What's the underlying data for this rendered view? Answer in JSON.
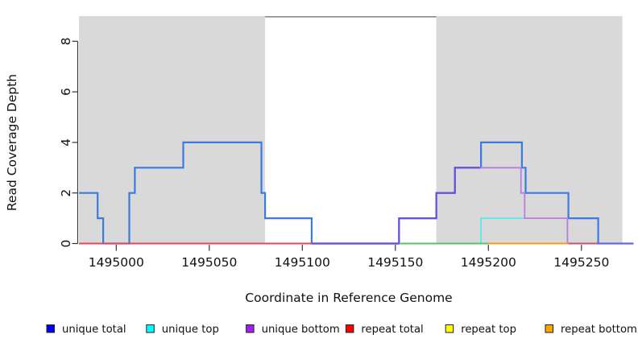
{
  "chart_data": {
    "type": "line",
    "title": "",
    "xlabel": "Coordinate in Reference Genome",
    "ylabel": "Read Coverage Depth",
    "xlim": [
      1494980,
      1495278
    ],
    "ylim": [
      0,
      9
    ],
    "x_ticks": [
      1495000,
      1495050,
      1495100,
      1495150,
      1495200,
      1495250
    ],
    "y_ticks": [
      0,
      2,
      4,
      6,
      8
    ],
    "grid": false,
    "legend_position": "bottom",
    "repeat_regions": [
      {
        "name": "repeat-region-left",
        "from": 1494980,
        "to": 1495080
      },
      {
        "name": "repeat-region-right",
        "from": 1495172,
        "to": 1495272
      }
    ],
    "region_fill": "#D9D9D9",
    "gap_top_border": {
      "from": 1495080,
      "to": 1495172,
      "color": "#8A8A8A"
    },
    "legend": [
      {
        "label": "unique total",
        "color": "#0000EE"
      },
      {
        "label": "unique top",
        "color": "#00FFFF"
      },
      {
        "label": "unique bottom",
        "color": "#A020F0"
      },
      {
        "label": "repeat total",
        "color": "#FF0000"
      },
      {
        "label": "repeat top",
        "color": "#FFFF00"
      },
      {
        "label": "repeat bottom",
        "color": "#FFA500"
      }
    ],
    "series": [
      {
        "name": "unique-total-line",
        "color": "#3A7BE0",
        "width": 2.2,
        "dx": 0,
        "points": [
          [
            1494980,
            2
          ],
          [
            1494990,
            2
          ],
          [
            1494990,
            1
          ],
          [
            1494993,
            1
          ],
          [
            1494993,
            0
          ],
          [
            1495007,
            0
          ],
          [
            1495007,
            2
          ],
          [
            1495010,
            2
          ],
          [
            1495010,
            3
          ],
          [
            1495036,
            3
          ],
          [
            1495036,
            4
          ],
          [
            1495078,
            4
          ],
          [
            1495078,
            2
          ],
          [
            1495080,
            2
          ],
          [
            1495080,
            1
          ],
          [
            1495105,
            1
          ],
          [
            1495105,
            0
          ],
          [
            1495152,
            0
          ],
          [
            1495152,
            1
          ],
          [
            1495172,
            1
          ],
          [
            1495172,
            2
          ],
          [
            1495182,
            2
          ],
          [
            1495182,
            3
          ],
          [
            1495196,
            3
          ],
          [
            1495196,
            4
          ],
          [
            1495218,
            4
          ],
          [
            1495218,
            3
          ],
          [
            1495220,
            3
          ],
          [
            1495220,
            2
          ],
          [
            1495243,
            2
          ],
          [
            1495243,
            1
          ],
          [
            1495259,
            1
          ],
          [
            1495259,
            0
          ],
          [
            1495278,
            0
          ]
        ]
      },
      {
        "name": "unique-top-line",
        "color": "#5FE6E9",
        "width": 1.8,
        "dx": 0,
        "points": [
          [
            1495196,
            0
          ],
          [
            1495196,
            1
          ],
          [
            1495220,
            1
          ]
        ]
      },
      {
        "name": "unique-bottom-over-total-line",
        "color": "#6C4FD8",
        "width": 2.2,
        "dx": 0,
        "points": [
          [
            1495105,
            0
          ],
          [
            1495152,
            0
          ],
          [
            1495152,
            1
          ],
          [
            1495172,
            1
          ],
          [
            1495172,
            2
          ],
          [
            1495182,
            2
          ],
          [
            1495182,
            3
          ],
          [
            1495196,
            3
          ]
        ]
      },
      {
        "name": "unique-bottom-line",
        "color": "#BC7BDF",
        "width": 1.8,
        "dx": -1.2,
        "points": [
          [
            1495196,
            3
          ],
          [
            1495218,
            3
          ],
          [
            1495218,
            2
          ],
          [
            1495220,
            2
          ],
          [
            1495220,
            1
          ],
          [
            1495243,
            1
          ],
          [
            1495243,
            0
          ],
          [
            1495259,
            0
          ]
        ]
      }
    ],
    "baseline_segments": [
      {
        "name": "repeat-total-baseline",
        "color": "#E0485F",
        "from": 1494980,
        "to": 1495105
      },
      {
        "name": "overlap-green-baseline",
        "color": "#5FBE68",
        "from": 1495152,
        "to": 1495200
      },
      {
        "name": "repeat-bottom-baseline",
        "color": "#F89B1C",
        "from": 1495200,
        "to": 1495243
      },
      {
        "name": "overlap-rose-baseline",
        "color": "#BE5576",
        "from": 1495243,
        "to": 1495259
      },
      {
        "name": "unique-total-zero-baseline",
        "color": "#6868E2",
        "from": 1495259,
        "to": 1495278
      }
    ]
  }
}
